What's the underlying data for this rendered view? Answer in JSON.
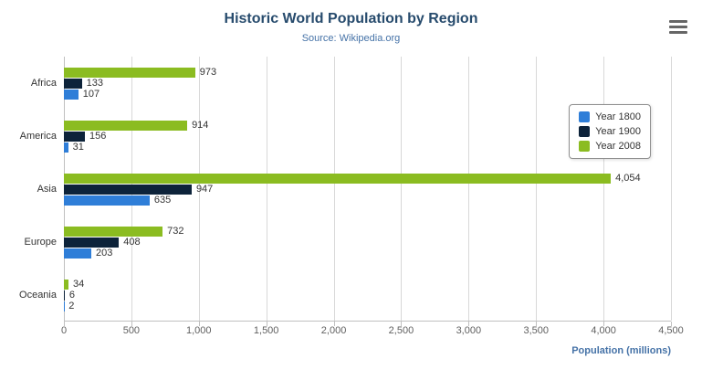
{
  "chart_data": {
    "type": "bar",
    "orientation": "horizontal",
    "title": "Historic World Population by Region",
    "subtitle": "Source: Wikipedia.org",
    "xlabel": "Population (millions)",
    "ylabel": "",
    "categories": [
      "Africa",
      "America",
      "Asia",
      "Europe",
      "Oceania"
    ],
    "series": [
      {
        "name": "Year 1800",
        "color": "#2f7ed8",
        "values": [
          107,
          31,
          635,
          203,
          2
        ]
      },
      {
        "name": "Year 1900",
        "color": "#0d233a",
        "values": [
          133,
          156,
          947,
          408,
          6
        ]
      },
      {
        "name": "Year 2008",
        "color": "#8bbc21",
        "values": [
          973,
          914,
          4054,
          732,
          34
        ]
      }
    ],
    "xlim": [
      0,
      4500
    ],
    "tick_step": 500,
    "grid": true,
    "legend_position": "right-float"
  },
  "menu": {
    "icon": "hamburger-menu"
  }
}
